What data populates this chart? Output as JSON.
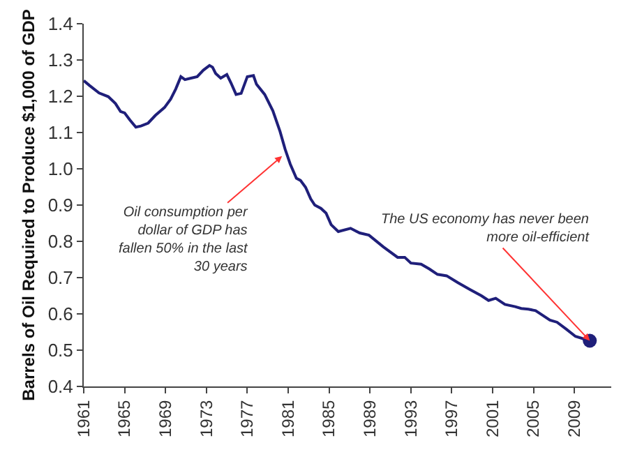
{
  "chart_data": {
    "type": "line",
    "ylabel": "Barrels of Oil Required to Produce $1,000 of GDP",
    "xlim": [
      1961,
      2012.6
    ],
    "xticks": [
      1961,
      1965,
      1969,
      1973,
      1977,
      1981,
      1985,
      1989,
      1993,
      1997,
      2001,
      2005,
      2009
    ],
    "ylim": [
      0.4,
      1.4
    ],
    "yticks": [
      {
        "value": 0.4,
        "label": "0.4"
      },
      {
        "value": 0.5,
        "label": "0.5"
      },
      {
        "value": 0.6,
        "label": "0.6"
      },
      {
        "value": 0.7,
        "label": "0.7"
      },
      {
        "value": 0.8,
        "label": "0.8"
      },
      {
        "value": 0.9,
        "label": "0.9"
      },
      {
        "value": 1.0,
        "label": "1.0"
      },
      {
        "value": 1.1,
        "label": "1.1"
      },
      {
        "value": 1.2,
        "label": "1.2"
      },
      {
        "value": 1.3,
        "label": "1.3"
      },
      {
        "value": 1.4,
        "label": "1.4"
      }
    ],
    "series": [
      {
        "color": "#1f1f7a",
        "marker": "none",
        "line_style": "solid",
        "x": [
          1961,
          1961.55,
          1962.5,
          1963.4,
          1964.1,
          1964.6,
          1965.0,
          1965.5,
          1966.1,
          1966.6,
          1967.3,
          1968,
          1968.9,
          1969.5,
          1970,
          1970.5,
          1970.9,
          1971.5,
          1972.1,
          1972.7,
          1973.3,
          1973.6,
          1973.9,
          1974.4,
          1975,
          1975.4,
          1975.9,
          1976.4,
          1977,
          1977.6,
          1977.9,
          1978.7,
          1979.5,
          1980.2,
          1980.7,
          1981.2,
          1981.8,
          1982.2,
          1982.7,
          1983.2,
          1983.6,
          1984.2,
          1984.7,
          1985.2,
          1985.9,
          1987.1,
          1988,
          1988.9,
          1990.3,
          1991.7,
          1992.4,
          1993,
          1994,
          1994.8,
          1995.6,
          1996.5,
          1997.6,
          1998.8,
          1999.9,
          2000.6,
          2001.3,
          2002.2,
          2003.2,
          2003.8,
          2004.5,
          2005.2,
          2005.9,
          2006.6,
          2007.3,
          2008.2,
          2009.1,
          2010.5
        ],
        "values": [
          1.243,
          1.23,
          1.209,
          1.199,
          1.18,
          1.158,
          1.154,
          1.135,
          1.115,
          1.118,
          1.126,
          1.147,
          1.169,
          1.192,
          1.22,
          1.254,
          1.246,
          1.25,
          1.254,
          1.272,
          1.285,
          1.28,
          1.263,
          1.25,
          1.26,
          1.237,
          1.205,
          1.208,
          1.254,
          1.257,
          1.233,
          1.205,
          1.16,
          1.103,
          1.054,
          1.013,
          0.974,
          0.968,
          0.949,
          0.917,
          0.9,
          0.891,
          0.878,
          0.846,
          0.827,
          0.836,
          0.823,
          0.817,
          0.785,
          0.756,
          0.756,
          0.74,
          0.737,
          0.724,
          0.709,
          0.705,
          0.686,
          0.667,
          0.65,
          0.637,
          0.643,
          0.626,
          0.62,
          0.615,
          0.613,
          0.609,
          0.596,
          0.583,
          0.577,
          0.558,
          0.538,
          0.526
        ]
      },
      {
        "type": "scatter",
        "color": "#1f1f7a",
        "marker": "circle",
        "x": [
          2010.5
        ],
        "values": [
          0.526
        ]
      }
    ],
    "annotations": [
      {
        "text": "Oil consumption per dollar of GDP has fallen 50% in the last 30 years",
        "x": 1980.4,
        "y": 1.035
      },
      {
        "text": "The US economy has never been more oil-efficient",
        "x": 2010.5,
        "y": 0.526
      }
    ]
  }
}
